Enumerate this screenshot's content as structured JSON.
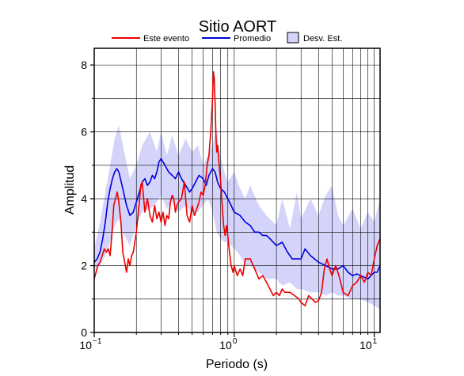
{
  "chart_data": {
    "type": "line",
    "title": "Sitio AORT",
    "xlabel": "Periodo (s)",
    "ylabel": "Amplitud",
    "x_scale": "log",
    "xlim": [
      0.1,
      11
    ],
    "ylim": [
      0,
      8.5
    ],
    "x_ticks": [
      {
        "base": "10",
        "exp": "−1",
        "value": 0.1
      },
      {
        "base": "10",
        "exp": "0",
        "value": 1
      },
      {
        "base": "10",
        "exp": "1",
        "value": 10
      }
    ],
    "y_ticks": [
      0,
      2,
      4,
      6,
      8
    ],
    "grid": true,
    "legend": {
      "placement": "top",
      "entries": [
        {
          "label": "Este evento",
          "kind": "line",
          "color": "#ee0000"
        },
        {
          "label": "Promedio",
          "kind": "line",
          "color": "#0000dd"
        },
        {
          "label": "Desv. Est.",
          "kind": "band",
          "color": "#d4d4fa"
        }
      ]
    },
    "band": {
      "name": "Desv. Est.",
      "color": "#d4d4fa",
      "x": [
        0.1,
        0.11,
        0.12,
        0.13,
        0.14,
        0.15,
        0.16,
        0.18,
        0.2,
        0.22,
        0.25,
        0.28,
        0.3,
        0.33,
        0.36,
        0.4,
        0.45,
        0.5,
        0.55,
        0.6,
        0.65,
        0.7,
        0.75,
        0.8,
        0.85,
        0.9,
        1.0,
        1.1,
        1.2,
        1.3,
        1.5,
        1.7,
        2.0,
        2.2,
        2.5,
        2.8,
        3.0,
        3.5,
        4.0,
        4.5,
        5.0,
        5.5,
        6.0,
        7.0,
        8.0,
        9.0,
        10.0,
        11.0
      ],
      "upper": [
        2.5,
        3.3,
        4.2,
        5.0,
        5.8,
        6.2,
        5.6,
        4.6,
        5.0,
        5.6,
        6.0,
        5.4,
        6.0,
        5.3,
        5.9,
        5.3,
        5.8,
        5.4,
        5.6,
        5.0,
        5.3,
        5.6,
        6.1,
        5.2,
        4.8,
        4.5,
        4.8,
        4.3,
        4.0,
        4.4,
        3.8,
        3.5,
        3.2,
        4.0,
        3.1,
        4.2,
        3.4,
        4.0,
        3.5,
        4.1,
        4.4,
        3.5,
        3.2,
        3.7,
        3.1,
        3.6,
        3.3,
        4.0
      ],
      "lower": [
        1.9,
        2.0,
        2.3,
        2.7,
        3.2,
        3.4,
        3.0,
        2.6,
        3.2,
        3.6,
        3.7,
        3.9,
        4.1,
        3.7,
        3.9,
        3.6,
        3.8,
        3.6,
        3.6,
        3.8,
        4.0,
        3.6,
        3.0,
        2.8,
        2.7,
        2.7,
        2.5,
        2.3,
        2.0,
        2.0,
        1.8,
        1.6,
        1.6,
        1.4,
        1.5,
        1.3,
        1.3,
        1.2,
        1.2,
        1.1,
        1.2,
        1.1,
        1.1,
        1.0,
        1.0,
        0.9,
        0.8,
        0.7
      ]
    },
    "series": [
      {
        "name": "Promedio",
        "color": "#0000dd",
        "x": [
          0.1,
          0.105,
          0.11,
          0.115,
          0.12,
          0.125,
          0.13,
          0.135,
          0.14,
          0.145,
          0.15,
          0.16,
          0.17,
          0.18,
          0.19,
          0.2,
          0.21,
          0.22,
          0.23,
          0.24,
          0.25,
          0.26,
          0.27,
          0.28,
          0.29,
          0.3,
          0.32,
          0.34,
          0.36,
          0.38,
          0.4,
          0.42,
          0.45,
          0.48,
          0.5,
          0.53,
          0.56,
          0.6,
          0.63,
          0.66,
          0.7,
          0.73,
          0.76,
          0.8,
          0.85,
          0.9,
          0.95,
          1.0,
          1.1,
          1.2,
          1.3,
          1.4,
          1.5,
          1.6,
          1.7,
          1.8,
          2.0,
          2.2,
          2.4,
          2.6,
          2.8,
          3.0,
          3.2,
          3.5,
          4.0,
          4.5,
          5.0,
          5.5,
          6.0,
          6.5,
          7.0,
          7.5,
          8.0,
          8.5,
          9.0,
          9.5,
          10.0,
          10.5,
          11.0
        ],
        "y": [
          2.1,
          2.2,
          2.4,
          2.8,
          3.3,
          3.9,
          4.3,
          4.6,
          4.8,
          4.9,
          4.8,
          4.3,
          3.8,
          3.5,
          3.6,
          3.9,
          4.2,
          4.5,
          4.6,
          4.4,
          4.5,
          4.7,
          4.6,
          4.8,
          5.1,
          5.2,
          5.0,
          4.8,
          4.7,
          4.6,
          4.8,
          4.6,
          4.4,
          4.2,
          4.3,
          4.5,
          4.7,
          4.6,
          4.4,
          4.7,
          4.9,
          4.8,
          4.5,
          4.3,
          4.2,
          4.0,
          3.8,
          3.6,
          3.5,
          3.3,
          3.2,
          3.0,
          3.0,
          2.9,
          2.9,
          2.8,
          2.6,
          2.7,
          2.4,
          2.2,
          2.2,
          2.2,
          2.5,
          2.3,
          2.1,
          2.0,
          1.9,
          1.9,
          2.0,
          1.8,
          1.7,
          1.75,
          1.7,
          1.65,
          1.6,
          1.7,
          1.8,
          1.8,
          2.0
        ]
      },
      {
        "name": "Este evento",
        "color": "#ee0000",
        "x": [
          0.1,
          0.103,
          0.106,
          0.11,
          0.114,
          0.118,
          0.122,
          0.126,
          0.13,
          0.134,
          0.138,
          0.142,
          0.146,
          0.15,
          0.155,
          0.16,
          0.165,
          0.17,
          0.175,
          0.18,
          0.185,
          0.19,
          0.2,
          0.21,
          0.215,
          0.22,
          0.23,
          0.24,
          0.25,
          0.26,
          0.27,
          0.28,
          0.29,
          0.3,
          0.31,
          0.32,
          0.33,
          0.34,
          0.35,
          0.36,
          0.37,
          0.38,
          0.39,
          0.4,
          0.42,
          0.44,
          0.46,
          0.48,
          0.5,
          0.52,
          0.54,
          0.56,
          0.58,
          0.6,
          0.62,
          0.64,
          0.66,
          0.68,
          0.7,
          0.71,
          0.72,
          0.73,
          0.74,
          0.75,
          0.76,
          0.78,
          0.8,
          0.82,
          0.84,
          0.86,
          0.88,
          0.9,
          0.92,
          0.95,
          0.98,
          1.0,
          1.05,
          1.1,
          1.15,
          1.2,
          1.3,
          1.4,
          1.5,
          1.6,
          1.7,
          1.8,
          1.9,
          2.0,
          2.1,
          2.2,
          2.3,
          2.4,
          2.5,
          2.7,
          2.9,
          3.0,
          3.2,
          3.4,
          3.6,
          3.8,
          4.0,
          4.2,
          4.4,
          4.6,
          4.8,
          5.0,
          5.3,
          5.6,
          6.0,
          6.5,
          7.0,
          7.5,
          8.0,
          8.5,
          9.0,
          9.5,
          10.0,
          10.5,
          11.0
        ],
        "y": [
          1.6,
          1.8,
          2.0,
          2.1,
          2.3,
          2.5,
          2.4,
          2.5,
          2.3,
          3.0,
          3.8,
          4.0,
          4.2,
          3.9,
          3.3,
          2.4,
          2.1,
          1.8,
          2.2,
          2.0,
          2.3,
          2.4,
          3.0,
          3.9,
          4.4,
          4.5,
          3.6,
          4.0,
          3.5,
          3.3,
          3.8,
          3.4,
          3.6,
          3.3,
          3.6,
          3.2,
          3.5,
          3.4,
          3.9,
          4.1,
          4.0,
          3.6,
          3.8,
          3.9,
          4.0,
          4.5,
          3.5,
          3.3,
          3.8,
          3.5,
          3.7,
          3.9,
          4.2,
          4.1,
          4.4,
          5.0,
          5.3,
          6.0,
          7.0,
          7.8,
          7.6,
          6.8,
          5.9,
          5.4,
          5.6,
          5.0,
          4.5,
          3.8,
          3.2,
          2.9,
          3.2,
          2.9,
          2.5,
          2.0,
          1.8,
          2.0,
          1.7,
          1.9,
          1.7,
          2.2,
          2.2,
          1.9,
          1.6,
          1.7,
          1.5,
          1.3,
          1.1,
          1.2,
          1.1,
          1.3,
          1.2,
          1.2,
          1.2,
          1.1,
          1.0,
          0.9,
          0.8,
          1.1,
          1.0,
          0.9,
          0.95,
          1.2,
          1.9,
          2.2,
          1.9,
          1.7,
          2.0,
          1.7,
          1.2,
          1.1,
          1.4,
          1.5,
          1.7,
          1.5,
          1.8,
          1.7,
          2.2,
          2.6,
          2.8
        ]
      }
    ]
  }
}
